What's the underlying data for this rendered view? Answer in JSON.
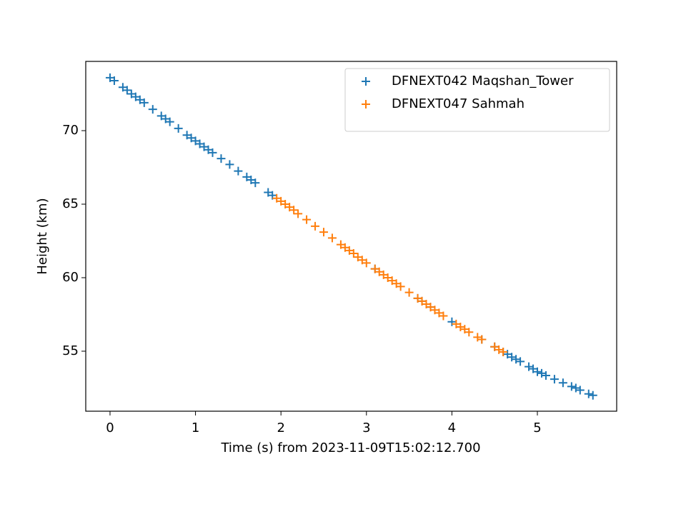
{
  "chart_data": {
    "type": "scatter",
    "xlabel": "Time (s) from 2023-11-09T15:02:12.700",
    "ylabel": "Height (km)",
    "xlim": [
      -0.284,
      5.928
    ],
    "ylim": [
      50.92,
      74.71
    ],
    "xticks": [
      0,
      1,
      2,
      3,
      4,
      5
    ],
    "yticks": [
      55,
      60,
      65,
      70
    ],
    "legend": "upper right",
    "marker": "+",
    "series": [
      {
        "name": "DFNEXT042 Maqshan_Tower",
        "color": "#1f77b4",
        "x": [
          0,
          0.05,
          0.15,
          0.2,
          0.25,
          0.3,
          0.35,
          0.4,
          0.5,
          0.6,
          0.65,
          0.7,
          0.8,
          0.9,
          0.95,
          1.0,
          1.05,
          1.1,
          1.15,
          1.2,
          1.3,
          1.4,
          1.5,
          1.6,
          1.65,
          1.7,
          1.85,
          1.9,
          3.1,
          3.6,
          3.65,
          3.75,
          4.0,
          4.35,
          4.5,
          4.6,
          4.65,
          4.7,
          4.75,
          4.8,
          4.9,
          4.95,
          5.0,
          5.05,
          5.1,
          5.2,
          5.3,
          5.4,
          5.45,
          5.5,
          5.6,
          5.65
        ],
        "values": [
          73.6,
          73.4,
          72.95,
          72.75,
          72.5,
          72.3,
          72.1,
          71.9,
          71.45,
          71.0,
          70.8,
          70.6,
          70.15,
          69.7,
          69.5,
          69.3,
          69.1,
          68.9,
          68.7,
          68.5,
          68.1,
          67.7,
          67.25,
          66.85,
          66.65,
          66.45,
          65.8,
          65.6,
          60.6,
          58.6,
          58.4,
          58.0,
          57.0,
          55.8,
          55.3,
          54.95,
          54.8,
          54.6,
          54.45,
          54.3,
          53.95,
          53.8,
          53.6,
          53.5,
          53.35,
          53.1,
          52.85,
          52.6,
          52.5,
          52.35,
          52.1,
          52.0
        ]
      },
      {
        "name": "DFNEXT047 Sahmah",
        "color": "#ff7f0e",
        "x": [
          1.95,
          2.0,
          2.05,
          2.1,
          2.15,
          2.2,
          2.3,
          2.4,
          2.5,
          2.6,
          2.7,
          2.75,
          2.8,
          2.85,
          2.9,
          2.95,
          3.0,
          3.1,
          3.15,
          3.2,
          3.25,
          3.3,
          3.35,
          3.4,
          3.5,
          3.6,
          3.65,
          3.7,
          3.75,
          3.8,
          3.85,
          3.9,
          4.05,
          4.1,
          4.15,
          4.2,
          4.3,
          4.35,
          4.5,
          4.55,
          4.6
        ],
        "values": [
          65.4,
          65.2,
          65.0,
          64.8,
          64.6,
          64.35,
          63.95,
          63.5,
          63.1,
          62.7,
          62.25,
          62.05,
          61.85,
          61.65,
          61.4,
          61.2,
          61.0,
          60.6,
          60.4,
          60.2,
          60.0,
          59.8,
          59.6,
          59.4,
          59.0,
          58.6,
          58.4,
          58.2,
          58.0,
          57.8,
          57.6,
          57.4,
          56.85,
          56.65,
          56.5,
          56.3,
          55.95,
          55.8,
          55.3,
          55.1,
          54.95
        ]
      }
    ]
  }
}
